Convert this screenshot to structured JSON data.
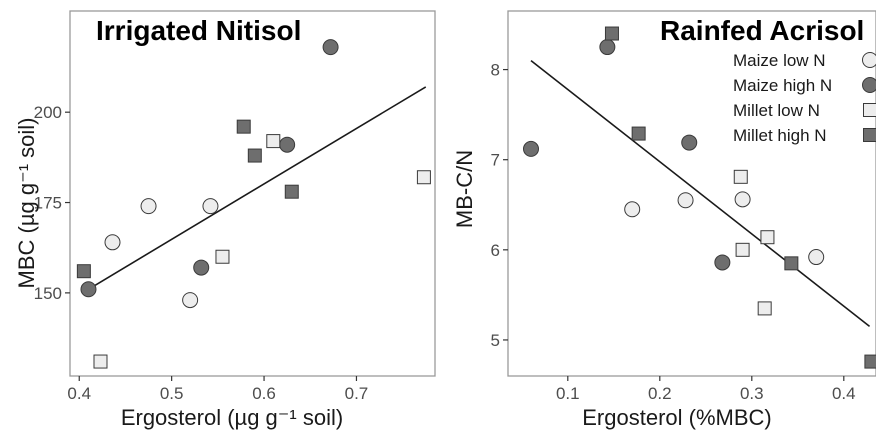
{
  "colors": {
    "light_fill": "#ededed",
    "dark_fill": "#6e6e6e",
    "marker_stroke": "#3a3a3a",
    "fit_line": "#1a1a1a",
    "panel_border": "#9a9a9a"
  },
  "chart_data": [
    {
      "type": "scatter",
      "title": "Irrigated Nitisol",
      "xlabel": "Ergosterol (µg g⁻¹ soil)",
      "ylabel": "MBC (µg g⁻¹ soil)",
      "xlim": [
        0.39,
        0.785
      ],
      "ylim": [
        127,
        228
      ],
      "xticks": [
        0.4,
        0.5,
        0.6,
        0.7
      ],
      "xtick_labels": [
        "0.4",
        "0.5",
        "0.6",
        "0.7"
      ],
      "yticks": [
        150,
        175,
        200
      ],
      "ytick_labels": [
        "150",
        "175",
        "200"
      ],
      "grid": false,
      "fit_line": {
        "x": [
          0.41,
          0.775
        ],
        "y": [
          151,
          207
        ]
      },
      "series": [
        {
          "name": "Maize low N",
          "marker": "circle",
          "fill": "light",
          "points": [
            [
              0.436,
              164
            ],
            [
              0.475,
              174
            ],
            [
              0.52,
              148
            ],
            [
              0.542,
              174
            ]
          ]
        },
        {
          "name": "Maize high N",
          "marker": "circle",
          "fill": "dark",
          "points": [
            [
              0.41,
              151
            ],
            [
              0.532,
              157
            ],
            [
              0.625,
              191
            ],
            [
              0.672,
              218
            ]
          ]
        },
        {
          "name": "Millet low N",
          "marker": "square",
          "fill": "light",
          "points": [
            [
              0.423,
              131
            ],
            [
              0.555,
              160
            ],
            [
              0.61,
              192
            ],
            [
              0.773,
              182
            ]
          ]
        },
        {
          "name": "Millet high N",
          "marker": "square",
          "fill": "dark",
          "points": [
            [
              0.405,
              156
            ],
            [
              0.578,
              196
            ],
            [
              0.59,
              188
            ],
            [
              0.63,
              178
            ]
          ]
        }
      ]
    },
    {
      "type": "scatter",
      "title": "Rainfed Acrisol",
      "xlabel": "Ergosterol (%MBC)",
      "ylabel": "MB-C/N",
      "xlim": [
        0.035,
        0.435
      ],
      "ylim": [
        4.6,
        8.65
      ],
      "xticks": [
        0.1,
        0.2,
        0.3,
        0.4
      ],
      "xtick_labels": [
        "0.1",
        "0.2",
        "0.3",
        "0.4"
      ],
      "yticks": [
        5,
        6,
        7,
        8
      ],
      "ytick_labels": [
        "5",
        "6",
        "7",
        "8"
      ],
      "grid": false,
      "legend_position": "top-right",
      "fit_line": {
        "x": [
          0.06,
          0.428
        ],
        "y": [
          8.1,
          5.15
        ]
      },
      "series": [
        {
          "name": "Maize low N",
          "marker": "circle",
          "fill": "light",
          "points": [
            [
              0.17,
              6.45
            ],
            [
              0.228,
              6.55
            ],
            [
              0.29,
              6.56
            ],
            [
              0.37,
              5.92
            ]
          ]
        },
        {
          "name": "Maize high N",
          "marker": "circle",
          "fill": "dark",
          "points": [
            [
              0.06,
              7.12
            ],
            [
              0.143,
              8.25
            ],
            [
              0.232,
              7.19
            ],
            [
              0.268,
              5.86
            ]
          ]
        },
        {
          "name": "Millet low N",
          "marker": "square",
          "fill": "light",
          "points": [
            [
              0.288,
              6.81
            ],
            [
              0.29,
              6.0
            ],
            [
              0.317,
              6.14
            ],
            [
              0.314,
              5.35
            ]
          ]
        },
        {
          "name": "Millet high N",
          "marker": "square",
          "fill": "dark",
          "points": [
            [
              0.148,
              8.4
            ],
            [
              0.177,
              7.29
            ],
            [
              0.343,
              5.85
            ],
            [
              0.43,
              4.76
            ]
          ]
        }
      ]
    }
  ],
  "legend": [
    {
      "label": "Maize low N",
      "marker": "circle",
      "fill": "light"
    },
    {
      "label": "Maize high N",
      "marker": "circle",
      "fill": "dark"
    },
    {
      "label": "Millet low N",
      "marker": "square",
      "fill": "light"
    },
    {
      "label": "Millet high N",
      "marker": "square",
      "fill": "dark"
    }
  ]
}
